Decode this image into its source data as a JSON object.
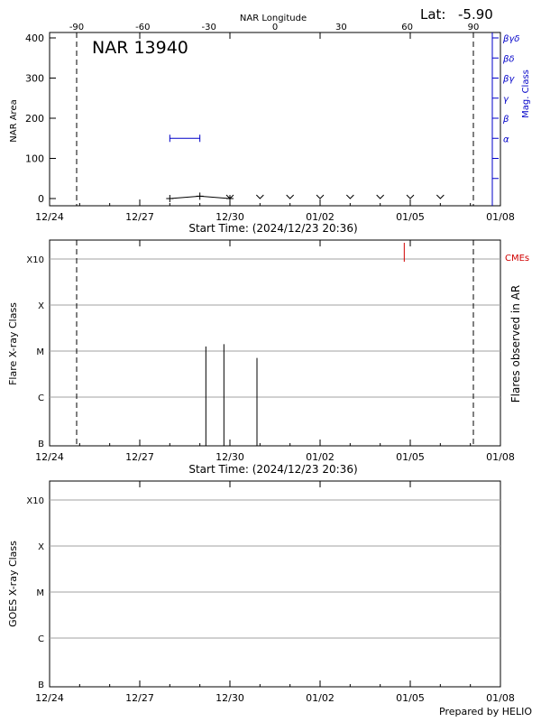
{
  "header": {
    "lat_label": "Lat:",
    "lat_value": "-5.90",
    "region_title": "NAR 13940",
    "top_axis_label": "NAR Longitude",
    "footer": "Prepared by HELIO"
  },
  "colors": {
    "mag_axis": "#0000c8",
    "cme": "#d00000",
    "grid": "#a0a0a0",
    "ink": "#000000"
  },
  "chart_data": [
    {
      "type": "line",
      "panel": "nar-area",
      "x_tick_labels": [
        "12/24",
        "12/27",
        "12/30",
        "01/02",
        "01/05",
        "01/08"
      ],
      "x_ticks_days": [
        0,
        3,
        6,
        9,
        12,
        15
      ],
      "xlim_days": [
        0,
        15
      ],
      "xlabel": "Start Time: (2024/12/23 20:36)",
      "ylabel": "NAR Area",
      "ylim": [
        0,
        400
      ],
      "y_ticks": [
        0,
        100,
        200,
        300,
        400
      ],
      "top_axis": {
        "label": "NAR Longitude",
        "tick_labels": [
          "-90",
          "-60",
          "-30",
          "0",
          "30",
          "60",
          "90"
        ],
        "tick_days": [
          0.9,
          3.1,
          5.3,
          7.5,
          9.7,
          11.9,
          14.1
        ]
      },
      "right_axis": {
        "label": "Mag. Class",
        "classes": [
          "α",
          "β",
          "γ",
          "βγ",
          "βδ",
          "βγδ"
        ],
        "class_levels": [
          150,
          200,
          250,
          300,
          350,
          400
        ]
      },
      "area_series": {
        "x_days": [
          4,
          5,
          6
        ],
        "values": [
          0,
          6,
          0
        ]
      },
      "zero_markers_days": [
        6,
        7,
        8,
        9,
        10,
        11,
        12,
        13
      ],
      "mag_class_span": {
        "x_days": [
          4,
          5
        ],
        "level": 150
      },
      "dashed_lines_days": [
        0.9,
        14.1
      ]
    },
    {
      "type": "bar",
      "panel": "flares",
      "x_tick_labels": [
        "12/24",
        "12/27",
        "12/30",
        "01/02",
        "01/05",
        "01/08"
      ],
      "xlim_days": [
        0,
        15
      ],
      "xlabel": "Start Time: (2024/12/23 20:36)",
      "ylabel": "Flare X-ray Class",
      "right_label": "Flares observed in AR",
      "y_class_labels": [
        "B",
        "C",
        "M",
        "X",
        "X10"
      ],
      "y_class_levels": [
        0,
        1,
        2,
        3,
        4
      ],
      "flares": [
        {
          "x_days": 5.2,
          "level": 2.1
        },
        {
          "x_days": 5.8,
          "level": 2.15
        },
        {
          "x_days": 6.9,
          "level": 1.85
        }
      ],
      "cmes": {
        "label": "CMEs",
        "x_days": [
          11.8
        ]
      },
      "dashed_lines_days": [
        0.9,
        14.1
      ]
    },
    {
      "type": "line",
      "panel": "goes",
      "x_tick_labels": [
        "12/24",
        "12/27",
        "12/30",
        "01/02",
        "01/05",
        "01/08"
      ],
      "xlim_days": [
        0,
        15
      ],
      "ylabel": "GOES X-ray Class",
      "y_class_labels": [
        "B",
        "C",
        "M",
        "X",
        "X10"
      ],
      "y_class_levels": [
        0,
        1,
        2,
        3,
        4
      ]
    }
  ]
}
